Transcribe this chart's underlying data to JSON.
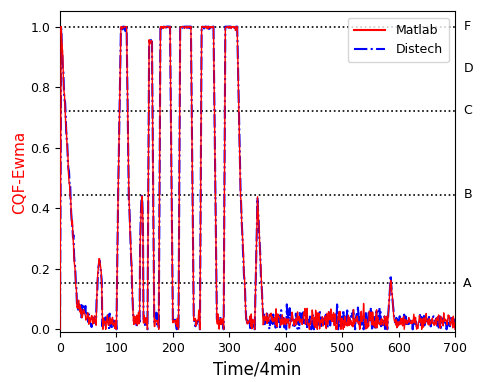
{
  "xlabel": "Time/4min",
  "ylabel": "CQF-Ewma",
  "ylabel_color": "red",
  "xlim": [
    0,
    700
  ],
  "ylim": [
    -0.01,
    1.05
  ],
  "xticks": [
    0,
    100,
    200,
    300,
    400,
    500,
    600,
    700
  ],
  "yticks": [
    0.0,
    0.2,
    0.4,
    0.6,
    0.8,
    1.0
  ],
  "hlines": [
    0.152,
    0.444,
    0.722,
    1.0
  ],
  "right_labels": [
    [
      "A",
      0.152
    ],
    [
      "B",
      0.444
    ],
    [
      "C",
      0.722
    ],
    [
      "D",
      0.86
    ],
    [
      "F",
      1.0
    ]
  ],
  "legend_labels": [
    "Matlab",
    "Distech"
  ],
  "line1_color": "red",
  "line2_color": "blue",
  "background_color": "white",
  "figsize": [
    5.0,
    3.82
  ],
  "dpi": 100
}
